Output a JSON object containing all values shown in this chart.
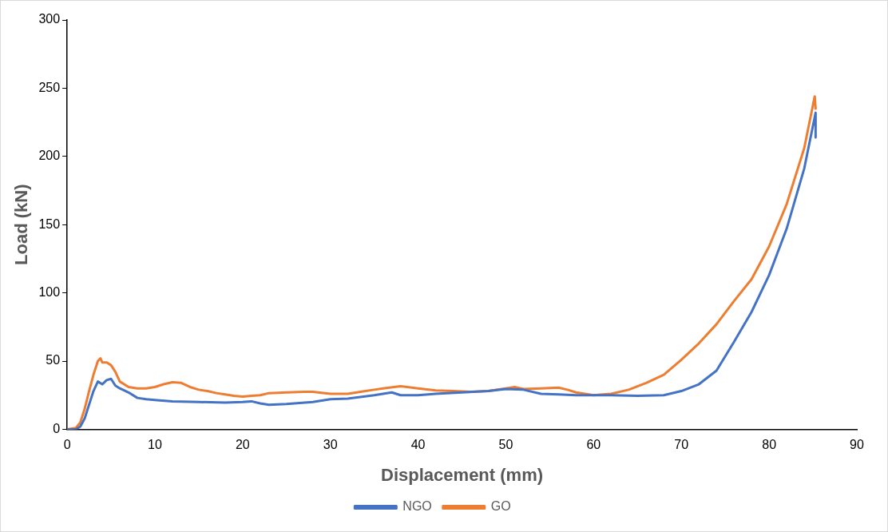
{
  "chart_data": {
    "type": "line",
    "xlabel": "Displacement (mm)",
    "ylabel": "Load (kN)",
    "xlim": [
      0,
      90
    ],
    "xticks": [
      0,
      10,
      20,
      30,
      40,
      50,
      60,
      70,
      80,
      90
    ],
    "ylim": [
      0,
      300
    ],
    "yticks": [
      0,
      50,
      100,
      150,
      200,
      250,
      300
    ],
    "grid": false,
    "legend": "bottom",
    "marker": "none",
    "line_style": "solid",
    "series": [
      {
        "name": "NGO",
        "color": "#4472c4",
        "x": [
          0,
          1,
          1.5,
          2,
          2.5,
          3,
          3.5,
          4,
          4.5,
          5,
          5.5,
          6,
          7,
          8,
          9,
          10,
          12,
          15,
          18,
          20,
          21,
          22,
          23,
          25,
          28,
          30,
          32,
          35,
          37,
          38,
          40,
          42,
          45,
          48,
          50,
          52,
          54,
          56,
          58,
          60,
          62,
          65,
          68,
          70,
          72,
          74,
          76,
          78,
          80,
          82,
          84,
          85.3,
          85.3
        ],
        "values": [
          0,
          0,
          2,
          8,
          18,
          28,
          35,
          33,
          36,
          37,
          32,
          30,
          27,
          23,
          22,
          21.5,
          20.5,
          20,
          19.5,
          20,
          20.5,
          19,
          18,
          18.5,
          20,
          22,
          22.5,
          25,
          27,
          25,
          25,
          26,
          27,
          28,
          29.5,
          29,
          26,
          25.5,
          25,
          25,
          25,
          24.5,
          25,
          28,
          33,
          43,
          64,
          86,
          113,
          147,
          191,
          232,
          214
        ]
      },
      {
        "name": "GO",
        "color": "#ed7d31",
        "x": [
          0,
          1,
          1.5,
          2,
          2.5,
          3,
          3.5,
          3.8,
          4,
          4.5,
          5,
          5.5,
          6,
          7,
          8,
          9,
          10,
          11,
          12,
          13,
          14,
          15,
          16,
          17,
          18,
          19,
          20,
          21,
          22,
          23,
          25,
          27,
          28,
          30,
          32,
          34,
          35,
          36,
          38,
          40,
          42,
          44,
          46,
          48,
          50,
          51,
          52,
          54,
          56,
          57,
          58,
          60,
          62,
          64,
          66,
          68,
          70,
          72,
          74,
          76,
          78,
          80,
          82,
          84,
          85.2,
          85.3
        ],
        "values": [
          0,
          1,
          5,
          15,
          28,
          40,
          50,
          52,
          49,
          49,
          47,
          42,
          35,
          31,
          30,
          30,
          31,
          33,
          34.5,
          34,
          31,
          29,
          28,
          26.5,
          25.5,
          24.5,
          24,
          24.5,
          25,
          26.5,
          27,
          27.5,
          27.5,
          26,
          26,
          28,
          29,
          30,
          31.5,
          30,
          28.5,
          28,
          27.5,
          28,
          30,
          31,
          29.5,
          30,
          30.5,
          29,
          27,
          25,
          26,
          29,
          34,
          40,
          51,
          63,
          77,
          94,
          110,
          134,
          165,
          206,
          244,
          235
        ]
      }
    ]
  }
}
